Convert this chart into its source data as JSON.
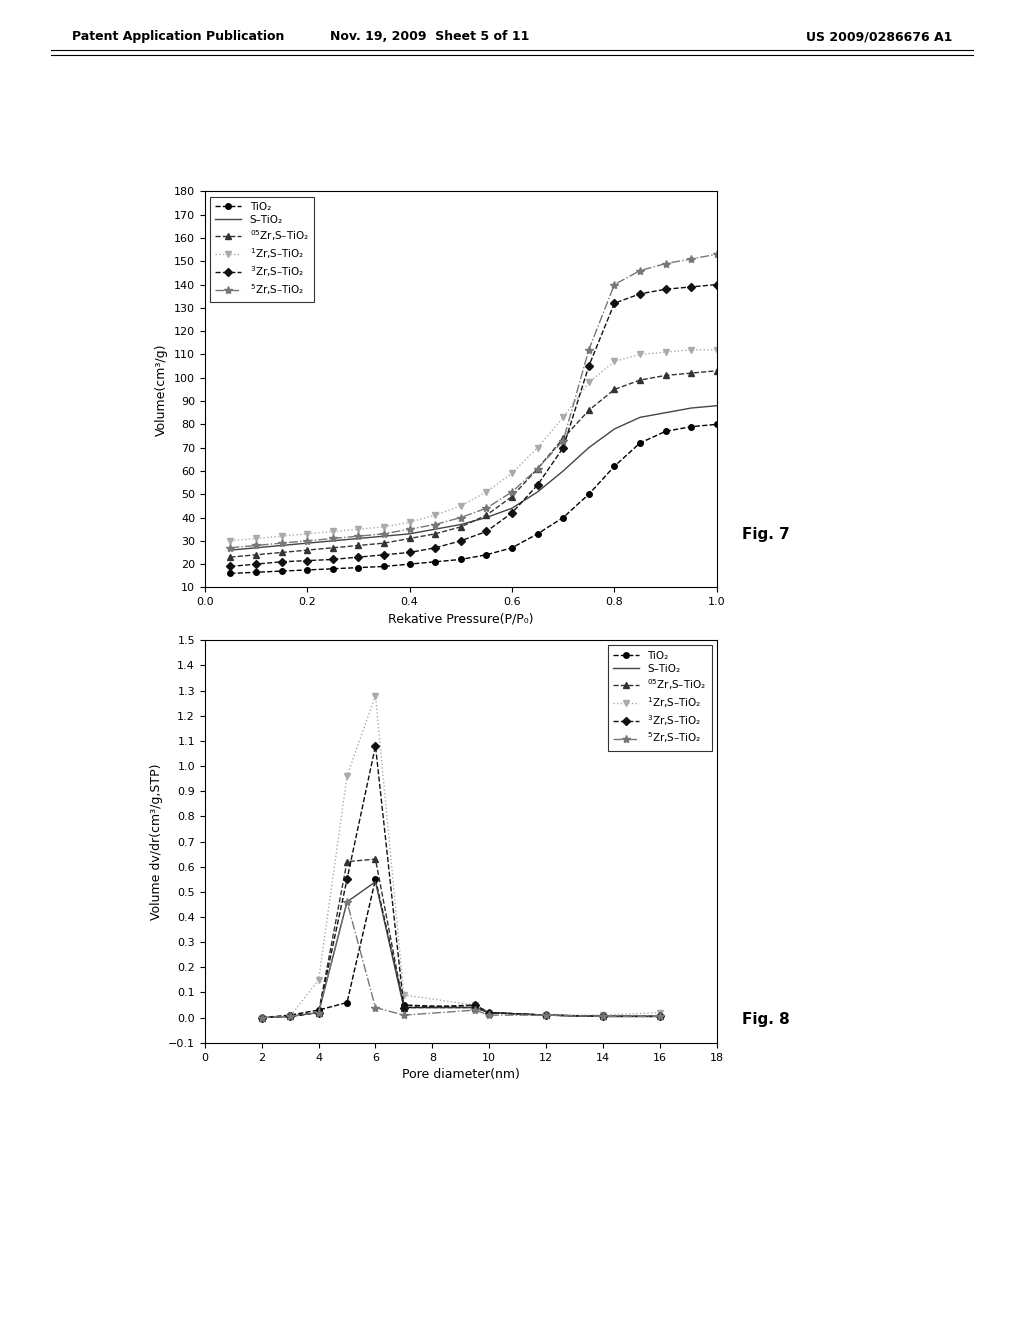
{
  "fig7": {
    "xlabel": "Rekative Pressure(P/P₀)",
    "ylabel": "Volume(cm³/g)",
    "xlim": [
      0.0,
      1.0
    ],
    "ylim": [
      10,
      180
    ],
    "yticks": [
      10,
      20,
      30,
      40,
      50,
      60,
      70,
      80,
      90,
      100,
      110,
      120,
      130,
      140,
      150,
      160,
      170,
      180
    ],
    "xticks": [
      0.0,
      0.2,
      0.4,
      0.6,
      0.8,
      1.0
    ],
    "series": {
      "TiO2": {
        "x": [
          0.05,
          0.1,
          0.15,
          0.2,
          0.25,
          0.3,
          0.35,
          0.4,
          0.45,
          0.5,
          0.55,
          0.6,
          0.65,
          0.7,
          0.75,
          0.8,
          0.85,
          0.9,
          0.95,
          1.0
        ],
        "y": [
          16,
          16.5,
          17,
          17.5,
          18,
          18.5,
          19,
          20,
          21,
          22,
          24,
          27,
          33,
          40,
          50,
          62,
          72,
          77,
          79,
          80
        ],
        "color": "#000000",
        "linestyle": "--",
        "marker": "o",
        "markersize": 4,
        "label": "TiO₂"
      },
      "S-TiO2": {
        "x": [
          0.05,
          0.1,
          0.15,
          0.2,
          0.25,
          0.3,
          0.35,
          0.4,
          0.45,
          0.5,
          0.55,
          0.6,
          0.65,
          0.7,
          0.75,
          0.8,
          0.85,
          0.9,
          0.95,
          1.0
        ],
        "y": [
          26,
          27,
          28,
          29,
          30,
          31,
          32,
          33,
          35,
          37,
          40,
          44,
          51,
          60,
          70,
          78,
          83,
          85,
          87,
          88
        ],
        "color": "#444444",
        "linestyle": "-",
        "marker": "None",
        "markersize": 4,
        "label": "S–TiO₂"
      },
      "05Zr": {
        "x": [
          0.05,
          0.1,
          0.15,
          0.2,
          0.25,
          0.3,
          0.35,
          0.4,
          0.45,
          0.5,
          0.55,
          0.6,
          0.65,
          0.7,
          0.75,
          0.8,
          0.85,
          0.9,
          0.95,
          1.0
        ],
        "y": [
          23,
          24,
          25,
          26,
          27,
          28,
          29,
          31,
          33,
          36,
          41,
          49,
          61,
          74,
          86,
          95,
          99,
          101,
          102,
          103
        ],
        "color": "#333333",
        "linestyle": "--",
        "marker": "^",
        "markersize": 4,
        "label": "$^{05}$Zr,S–TiO₂"
      },
      "1Zr": {
        "x": [
          0.05,
          0.1,
          0.15,
          0.2,
          0.25,
          0.3,
          0.35,
          0.4,
          0.45,
          0.5,
          0.55,
          0.6,
          0.65,
          0.7,
          0.75,
          0.8,
          0.85,
          0.9,
          0.95,
          1.0
        ],
        "y": [
          30,
          31,
          32,
          33,
          34,
          35,
          36,
          38,
          41,
          45,
          51,
          59,
          70,
          83,
          98,
          107,
          110,
          111,
          112,
          112
        ],
        "color": "#aaaaaa",
        "linestyle": ":",
        "marker": "v",
        "markersize": 4,
        "label": "$^{1}$Zr,S–TiO₂"
      },
      "3Zr": {
        "x": [
          0.05,
          0.1,
          0.15,
          0.2,
          0.25,
          0.3,
          0.35,
          0.4,
          0.45,
          0.5,
          0.55,
          0.6,
          0.65,
          0.7,
          0.75,
          0.8,
          0.85,
          0.9,
          0.95,
          1.0
        ],
        "y": [
          19,
          20,
          21,
          21.5,
          22,
          23,
          24,
          25,
          27,
          30,
          34,
          42,
          54,
          70,
          105,
          132,
          136,
          138,
          139,
          140
        ],
        "color": "#111111",
        "linestyle": "--",
        "marker": "D",
        "markersize": 4,
        "label": "$^{3}$Zr,S–TiO₂"
      },
      "5Zr": {
        "x": [
          0.05,
          0.1,
          0.15,
          0.2,
          0.25,
          0.3,
          0.35,
          0.4,
          0.45,
          0.5,
          0.55,
          0.6,
          0.65,
          0.7,
          0.75,
          0.8,
          0.85,
          0.9,
          0.95,
          1.0
        ],
        "y": [
          27,
          28,
          29,
          30,
          31,
          32,
          33,
          35,
          37,
          40,
          44,
          51,
          61,
          73,
          112,
          140,
          146,
          149,
          151,
          153
        ],
        "color": "#777777",
        "linestyle": "-.",
        "marker": "*",
        "markersize": 6,
        "label": "$^{5}$Zr,S–TiO₂"
      }
    }
  },
  "fig8": {
    "xlabel": "Pore diameter(nm)",
    "ylabel": "Volume dv/dr(cm³/g,STP)",
    "xlim": [
      0,
      18
    ],
    "ylim": [
      -0.1,
      1.5
    ],
    "yticks": [
      -0.1,
      0.0,
      0.1,
      0.2,
      0.3,
      0.4,
      0.5,
      0.6,
      0.7,
      0.8,
      0.9,
      1.0,
      1.1,
      1.2,
      1.3,
      1.4,
      1.5
    ],
    "xticks": [
      0,
      2,
      4,
      6,
      8,
      10,
      12,
      14,
      16,
      18
    ],
    "series": {
      "TiO2": {
        "x": [
          2,
          3,
          4,
          5,
          6,
          7,
          9.5,
          10,
          12,
          14,
          16
        ],
        "y": [
          0.0,
          0.01,
          0.03,
          0.06,
          0.55,
          0.05,
          0.04,
          0.02,
          0.01,
          0.005,
          0.005
        ],
        "color": "#000000",
        "linestyle": "--",
        "marker": "o",
        "markersize": 4,
        "label": "TiO₂"
      },
      "S-TiO2": {
        "x": [
          2,
          3,
          4,
          5,
          6,
          7,
          9.5,
          10,
          12,
          14,
          16
        ],
        "y": [
          0.0,
          0.005,
          0.02,
          0.46,
          0.54,
          0.04,
          0.04,
          0.02,
          0.01,
          0.005,
          0.005
        ],
        "color": "#444444",
        "linestyle": "-",
        "marker": "None",
        "markersize": 4,
        "label": "S–TiO₂"
      },
      "05Zr": {
        "x": [
          2,
          3,
          4,
          5,
          6,
          7,
          9.5,
          10,
          12,
          14,
          16
        ],
        "y": [
          0.0,
          0.005,
          0.02,
          0.62,
          0.63,
          0.04,
          0.04,
          0.02,
          0.01,
          0.005,
          0.005
        ],
        "color": "#333333",
        "linestyle": "--",
        "marker": "^",
        "markersize": 4,
        "label": "$^{05}$Zr,S–TiO₂"
      },
      "1Zr": {
        "x": [
          2,
          3,
          4,
          5,
          6,
          7,
          9.5,
          10,
          12,
          14,
          16
        ],
        "y": [
          0.0,
          0.005,
          0.15,
          0.96,
          1.28,
          0.09,
          0.05,
          0.02,
          0.01,
          0.01,
          0.02
        ],
        "color": "#aaaaaa",
        "linestyle": ":",
        "marker": "v",
        "markersize": 4,
        "label": "$^{1}$Zr,S–TiO₂"
      },
      "3Zr": {
        "x": [
          2,
          3,
          4,
          5,
          6,
          7,
          9.5,
          10,
          12,
          14,
          16
        ],
        "y": [
          0.0,
          0.005,
          0.02,
          0.55,
          1.08,
          0.04,
          0.05,
          0.02,
          0.01,
          0.005,
          0.005
        ],
        "color": "#111111",
        "linestyle": "--",
        "marker": "D",
        "markersize": 4,
        "label": "$^{3}$Zr,S–TiO₂"
      },
      "5Zr": {
        "x": [
          2,
          3,
          4,
          5,
          6,
          7,
          9.5,
          10,
          12,
          14,
          16
        ],
        "y": [
          0.0,
          0.005,
          0.02,
          0.46,
          0.04,
          0.01,
          0.03,
          0.01,
          0.01,
          0.005,
          0.005
        ],
        "color": "#777777",
        "linestyle": "-.",
        "marker": "*",
        "markersize": 6,
        "label": "$^{5}$Zr,S–TiO₂"
      }
    }
  },
  "header": {
    "left": "Patent Application Publication",
    "center": "Nov. 19, 2009  Sheet 5 of 11",
    "right": "US 2009/0286676 A1"
  },
  "fig7_label": "Fig. 7",
  "fig8_label": "Fig. 8"
}
